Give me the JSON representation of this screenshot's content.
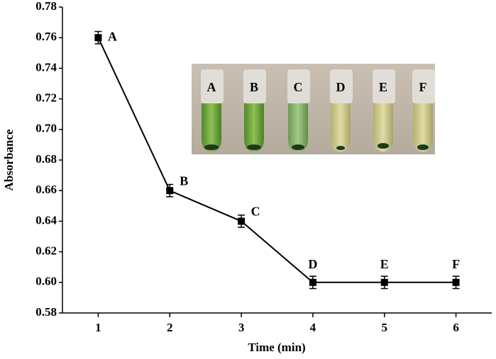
{
  "chart_data": {
    "type": "line",
    "xlabel": "Time (min)",
    "ylabel": "Absorbance",
    "x": [
      1,
      2,
      3,
      4,
      5,
      6
    ],
    "series": [
      {
        "color": "#000000",
        "values": [
          0.76,
          0.66,
          0.64,
          0.6,
          0.6,
          0.6
        ],
        "errors": [
          0.004,
          0.004,
          0.004,
          0.004,
          0.004,
          0.004
        ]
      }
    ],
    "point_labels": [
      "A",
      "B",
      "C",
      "D",
      "E",
      "F"
    ],
    "inset_labels": [
      "A",
      "B",
      "C",
      "D",
      "E",
      "F"
    ],
    "xlim": [
      0.5,
      6.5
    ],
    "xticks": [
      1,
      2,
      3,
      4,
      5,
      6
    ],
    "ylim": [
      0.58,
      0.78
    ],
    "yticks": [
      {
        "value": 0.58,
        "label": "0.58"
      },
      {
        "value": 0.6,
        "label": "0.60"
      },
      {
        "value": 0.62,
        "label": "0.62"
      },
      {
        "value": 0.64,
        "label": "0.64"
      },
      {
        "value": 0.66,
        "label": "0.66"
      },
      {
        "value": 0.68,
        "label": "0.68"
      },
      {
        "value": 0.7,
        "label": "0.70"
      },
      {
        "value": 0.72,
        "label": "0.72"
      },
      {
        "value": 0.74,
        "label": "0.74"
      },
      {
        "value": 0.76,
        "label": "0.76"
      },
      {
        "value": 0.78,
        "label": "0.78"
      }
    ]
  }
}
